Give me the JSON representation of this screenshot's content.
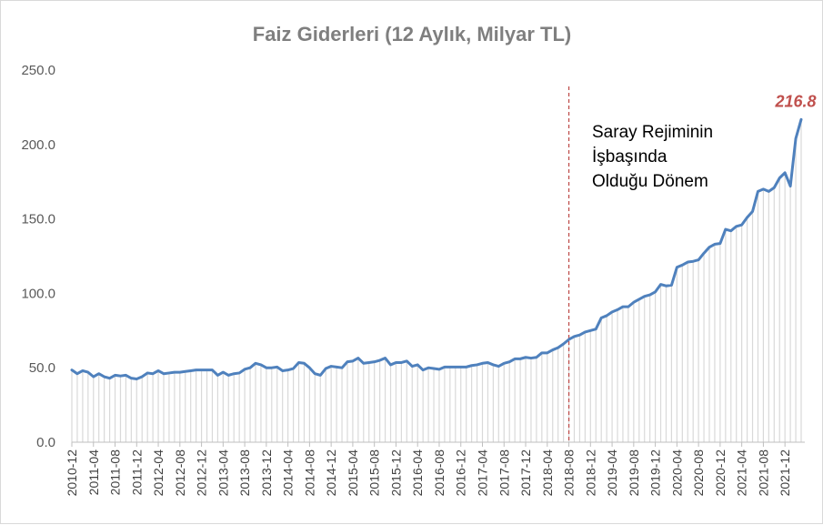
{
  "chart_data": {
    "type": "line",
    "title": "Faiz Giderleri  (12 Aylık, Milyar TL)",
    "xlabel": "",
    "ylabel": "",
    "ylim": [
      0,
      250
    ],
    "yticks": [
      "0.0",
      "50.0",
      "100.0",
      "150.0",
      "200.0",
      "250.0"
    ],
    "grid": false,
    "x_tick_labels": [
      "2010-12",
      "2011-04",
      "2011-08",
      "2011-12",
      "2012-04",
      "2012-08",
      "2012-12",
      "2013-04",
      "2013-08",
      "2013-12",
      "2014-04",
      "2014-08",
      "2014-12",
      "2015-04",
      "2015-08",
      "2015-12",
      "2016-04",
      "2016-08",
      "2016-12",
      "2017-04",
      "2017-08",
      "2017-12",
      "2018-04",
      "2018-08",
      "2018-12",
      "2019-04",
      "2019-08",
      "2019-12",
      "2020-04",
      "2020-08",
      "2020-12",
      "2021-04",
      "2021-08",
      "2021-12"
    ],
    "x_start": "2010-12",
    "series": [
      {
        "color": "#4f81bd",
        "values": [
          48.5,
          46,
          48,
          47,
          44,
          46,
          44,
          43,
          45,
          44.5,
          45,
          43,
          42.5,
          44,
          46.5,
          46,
          48,
          46,
          46.5,
          47,
          47,
          47.5,
          48,
          48.5,
          48.5,
          48.5,
          48.5,
          45,
          47,
          45,
          46,
          46.5,
          49,
          50,
          53,
          52,
          50,
          50,
          50.5,
          48,
          48.5,
          49.5,
          53.5,
          53,
          50,
          46,
          45,
          49.5,
          51,
          50.5,
          50,
          54,
          54.5,
          56.5,
          53,
          53.5,
          54,
          55,
          56.5,
          52,
          53.5,
          53.5,
          54.5,
          51,
          52,
          48.5,
          50,
          49.5,
          49,
          50.5,
          50.5,
          50.5,
          50.5,
          50.5,
          51.5,
          52,
          53,
          53.5,
          52,
          51,
          53,
          54,
          56,
          56,
          57,
          56.5,
          57,
          60,
          60,
          62,
          63.5,
          66,
          69,
          71,
          72,
          74,
          75,
          76,
          83.5,
          85,
          87.5,
          89,
          91,
          91,
          94,
          96,
          98,
          99,
          101,
          106,
          105,
          105.5,
          117.5,
          119,
          121,
          121.5,
          122.5,
          127,
          131,
          133,
          133.5,
          143,
          142,
          145,
          146,
          151,
          155,
          168.5,
          170,
          168.5,
          171,
          177.5,
          181,
          172,
          204,
          216.8
        ]
      }
    ],
    "fill_under_line": true,
    "fill_color": "#d9d9d9",
    "last_value_label": "216.8",
    "last_value_color": "#c0504d",
    "vline": {
      "x": "2018-08",
      "color": "#c0504d",
      "style": "dashed"
    },
    "annotation": {
      "lines": [
        "Saray Rejiminin",
        "İşbaşında",
        "Olduğu Dönem"
      ]
    }
  }
}
